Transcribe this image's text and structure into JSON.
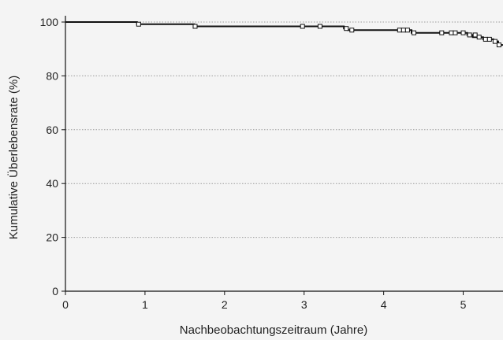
{
  "chart_data": {
    "type": "line",
    "title": "",
    "xlabel": "Nachbeobachtungszeitraum (Jahre)",
    "ylabel": "Kumulative Überlebensrate (%)",
    "xlim": [
      0,
      5.5
    ],
    "ylim": [
      0,
      100
    ],
    "xticks": [
      0,
      1,
      2,
      3,
      4,
      5
    ],
    "yticks": [
      0,
      20,
      40,
      60,
      80,
      100
    ],
    "grid": "horizontal dotted",
    "series": [
      {
        "style": "step",
        "color": "#111111",
        "points": [
          [
            0,
            100
          ],
          [
            0.9,
            100
          ],
          [
            0.9,
            99.2
          ],
          [
            1.62,
            99.2
          ],
          [
            1.62,
            98.4
          ],
          [
            3.5,
            98.4
          ],
          [
            3.5,
            97.6
          ],
          [
            3.55,
            97.6
          ],
          [
            3.55,
            97.0
          ],
          [
            4.35,
            97.0
          ],
          [
            4.35,
            96.0
          ],
          [
            5.05,
            96.0
          ],
          [
            5.05,
            95.2
          ],
          [
            5.12,
            95.2
          ],
          [
            5.12,
            94.4
          ],
          [
            5.25,
            94.4
          ],
          [
            5.25,
            93.6
          ],
          [
            5.38,
            93.6
          ],
          [
            5.38,
            92.8
          ],
          [
            5.44,
            92.8
          ],
          [
            5.44,
            91.5
          ],
          [
            5.5,
            91.5
          ]
        ]
      }
    ],
    "censored": [
      [
        0.92,
        99.2
      ],
      [
        1.63,
        98.4
      ],
      [
        2.98,
        98.4
      ],
      [
        3.2,
        98.4
      ],
      [
        3.53,
        97.6
      ],
      [
        3.6,
        97.0
      ],
      [
        4.2,
        97.0
      ],
      [
        4.25,
        97.0
      ],
      [
        4.3,
        97.0
      ],
      [
        4.38,
        96.0
      ],
      [
        4.73,
        96.0
      ],
      [
        4.85,
        96.0
      ],
      [
        4.9,
        96.0
      ],
      [
        5.0,
        96.0
      ],
      [
        5.08,
        95.2
      ],
      [
        5.15,
        95.2
      ],
      [
        5.2,
        94.4
      ],
      [
        5.28,
        93.6
      ],
      [
        5.33,
        93.6
      ],
      [
        5.4,
        92.8
      ],
      [
        5.45,
        91.5
      ]
    ]
  }
}
